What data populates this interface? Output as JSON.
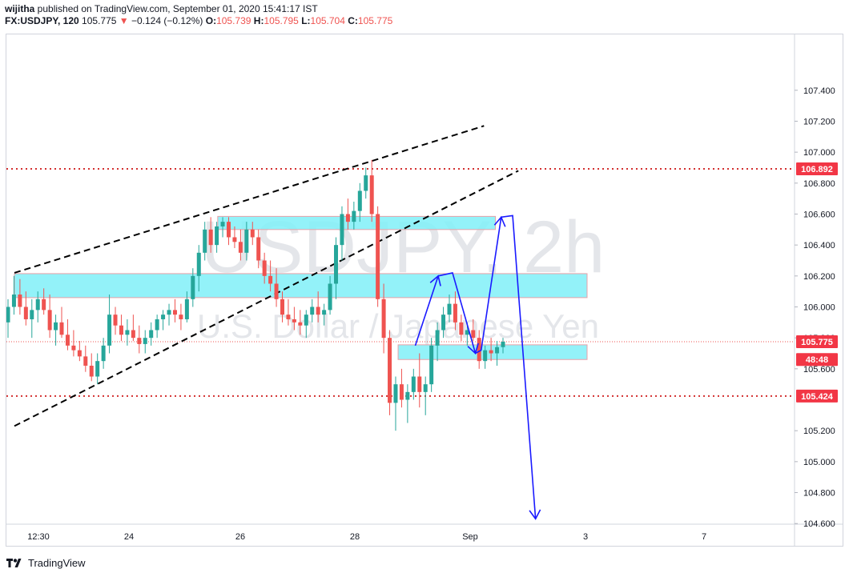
{
  "header": {
    "user": "wijitha",
    "published": " published on TradingView.com, September 01, 2020 15:41:17 IST",
    "symbol": "FX:USDJPY, 120",
    "last": " 105.775 ",
    "change_arrow": "▼",
    "change": " −0.124 (−0.12%) ",
    "o_label": "O:",
    "o_val": "105.739",
    "h_label": " H:",
    "h_val": "105.795",
    "l_label": " L:",
    "l_val": "105.704",
    "c_label": " C:",
    "c_val": "105.775"
  },
  "footer": {
    "brand": "TradingView"
  },
  "chart_data": {
    "type": "candlestick",
    "watermark": {
      "title": "USDJPY, 2h",
      "subtitle": "U.S. Dollar / Japanese Yen"
    },
    "y_ticks": [
      "107.400",
      "107.200",
      "107.000",
      "106.800",
      "106.600",
      "106.400",
      "106.200",
      "106.000",
      "105.800",
      "105.600",
      "105.200",
      "105.000",
      "104.800",
      "104.600"
    ],
    "x_ticks": [
      "12:30",
      "24",
      "26",
      "28",
      "Sep",
      "3",
      "7"
    ],
    "price_badges": [
      {
        "label": "106.892",
        "value": 106.892,
        "color": "#f23645"
      },
      {
        "label": "105.775",
        "value": 105.775,
        "color": "#f23645"
      },
      {
        "label": "48:48",
        "value": 105.66,
        "color": "#f23645"
      },
      {
        "label": "105.424",
        "value": 105.424,
        "color": "#f23645"
      }
    ],
    "horizontal_lines": [
      106.892,
      105.424
    ],
    "last_price_line": 105.775,
    "zones": [
      {
        "from_day": 25.55,
        "to_day": 30.4,
        "low": 106.5,
        "high": 106.585
      },
      {
        "from_day": 22.0,
        "to_day": 32.0,
        "low": 106.06,
        "high": 106.215
      },
      {
        "from_day": 28.7,
        "to_day": 32.0,
        "low": 105.66,
        "high": 105.755
      }
    ],
    "trendlines": [
      {
        "p1": [
          22.0,
          106.22
        ],
        "p2": [
          30.2,
          107.17
        ]
      },
      {
        "p1": [
          22.0,
          105.23
        ],
        "p2": [
          30.8,
          106.88
        ]
      }
    ],
    "projection_path": [
      [
        29.0,
        105.75
      ],
      [
        29.4,
        106.2
      ],
      [
        29.65,
        106.22
      ],
      [
        30.05,
        105.7
      ],
      [
        30.15,
        105.72
      ],
      [
        30.5,
        106.58
      ],
      [
        30.7,
        106.59
      ],
      [
        31.1,
        104.63
      ]
    ],
    "ohlc": [
      [
        105.9,
        106.05,
        105.8,
        106.0
      ],
      [
        106.0,
        106.2,
        105.95,
        106.08
      ],
      [
        106.08,
        106.18,
        105.95,
        106.0
      ],
      [
        106.0,
        106.1,
        105.88,
        105.92
      ],
      [
        105.92,
        106.05,
        105.8,
        105.98
      ],
      [
        105.98,
        106.1,
        105.9,
        106.05
      ],
      [
        106.05,
        106.12,
        105.95,
        105.98
      ],
      [
        105.98,
        106.08,
        105.8,
        105.85
      ],
      [
        105.85,
        105.95,
        105.75,
        105.9
      ],
      [
        105.9,
        106.0,
        105.8,
        105.82
      ],
      [
        105.82,
        105.92,
        105.72,
        105.75
      ],
      [
        105.75,
        105.85,
        105.68,
        105.72
      ],
      [
        105.72,
        105.78,
        105.65,
        105.68
      ],
      [
        105.68,
        105.75,
        105.58,
        105.62
      ],
      [
        105.62,
        105.7,
        105.52,
        105.55
      ],
      [
        105.55,
        105.7,
        105.5,
        105.65
      ],
      [
        105.65,
        105.8,
        105.6,
        105.75
      ],
      [
        105.75,
        106.08,
        105.7,
        105.95
      ],
      [
        105.95,
        106.0,
        105.82,
        105.88
      ],
      [
        105.88,
        105.95,
        105.78,
        105.82
      ],
      [
        105.82,
        105.92,
        105.75,
        105.85
      ],
      [
        105.85,
        105.95,
        105.78,
        105.8
      ],
      [
        105.8,
        105.88,
        105.7,
        105.76
      ],
      [
        105.76,
        105.85,
        105.7,
        105.8
      ],
      [
        105.8,
        105.9,
        105.75,
        105.85
      ],
      [
        105.85,
        105.95,
        105.8,
        105.92
      ],
      [
        105.92,
        105.98,
        105.85,
        105.95
      ],
      [
        105.95,
        106.02,
        105.88,
        105.98
      ],
      [
        105.98,
        106.05,
        105.9,
        105.95
      ],
      [
        105.95,
        106.02,
        105.85,
        105.92
      ],
      [
        105.92,
        106.1,
        105.9,
        106.05
      ],
      [
        106.05,
        106.25,
        106.0,
        106.2
      ],
      [
        106.2,
        106.4,
        106.1,
        106.35
      ],
      [
        106.35,
        106.55,
        106.3,
        106.5
      ],
      [
        106.5,
        106.58,
        106.35,
        106.4
      ],
      [
        106.4,
        106.55,
        106.35,
        106.52
      ],
      [
        106.52,
        106.58,
        106.45,
        106.55
      ],
      [
        106.55,
        106.58,
        106.4,
        106.45
      ],
      [
        106.45,
        106.52,
        106.38,
        106.42
      ],
      [
        106.42,
        106.5,
        106.3,
        106.35
      ],
      [
        106.35,
        106.55,
        106.3,
        106.5
      ],
      [
        106.5,
        106.55,
        106.4,
        106.45
      ],
      [
        106.45,
        106.5,
        106.25,
        106.3
      ],
      [
        106.3,
        106.35,
        106.15,
        106.2
      ],
      [
        106.2,
        106.3,
        106.1,
        106.15
      ],
      [
        106.15,
        106.25,
        106.0,
        106.05
      ],
      [
        106.05,
        106.1,
        105.9,
        105.95
      ],
      [
        105.95,
        106.05,
        105.88,
        105.92
      ],
      [
        105.92,
        106.0,
        105.85,
        105.9
      ],
      [
        105.9,
        105.98,
        105.82,
        105.88
      ],
      [
        105.88,
        105.98,
        105.8,
        105.95
      ],
      [
        105.95,
        106.05,
        105.9,
        106.0
      ],
      [
        106.0,
        106.1,
        105.9,
        105.95
      ],
      [
        105.95,
        106.02,
        105.88,
        105.98
      ],
      [
        105.98,
        106.2,
        105.95,
        106.15
      ],
      [
        106.15,
        106.45,
        106.05,
        106.4
      ],
      [
        106.4,
        106.65,
        106.3,
        106.6
      ],
      [
        106.6,
        106.7,
        106.5,
        106.55
      ],
      [
        106.55,
        106.68,
        106.5,
        106.62
      ],
      [
        106.62,
        106.8,
        106.55,
        106.75
      ],
      [
        106.75,
        106.9,
        106.7,
        106.85
      ],
      [
        106.85,
        106.95,
        106.55,
        106.6
      ],
      [
        106.6,
        106.65,
        106.0,
        106.05
      ],
      [
        106.05,
        106.15,
        105.7,
        105.8
      ],
      [
        105.8,
        105.85,
        105.3,
        105.38
      ],
      [
        105.38,
        105.55,
        105.2,
        105.5
      ],
      [
        105.5,
        105.6,
        105.35,
        105.4
      ],
      [
        105.4,
        105.5,
        105.25,
        105.45
      ],
      [
        105.45,
        105.6,
        105.4,
        105.55
      ],
      [
        105.55,
        105.7,
        105.35,
        105.45
      ],
      [
        105.45,
        105.55,
        105.3,
        105.5
      ],
      [
        105.5,
        105.8,
        105.45,
        105.75
      ],
      [
        105.75,
        105.9,
        105.65,
        105.85
      ],
      [
        105.85,
        106.0,
        105.8,
        105.95
      ],
      [
        105.95,
        106.08,
        105.9,
        106.02
      ],
      [
        106.02,
        106.1,
        105.85,
        105.9
      ],
      [
        105.9,
        105.95,
        105.78,
        105.82
      ],
      [
        105.82,
        105.9,
        105.75,
        105.85
      ],
      [
        105.85,
        105.92,
        105.78,
        105.8
      ],
      [
        105.8,
        105.85,
        105.6,
        105.65
      ],
      [
        105.65,
        105.75,
        105.6,
        105.72
      ],
      [
        105.72,
        105.8,
        105.65,
        105.7
      ],
      [
        105.7,
        105.78,
        105.62,
        105.74
      ],
      [
        105.74,
        105.8,
        105.7,
        105.775
      ]
    ]
  }
}
